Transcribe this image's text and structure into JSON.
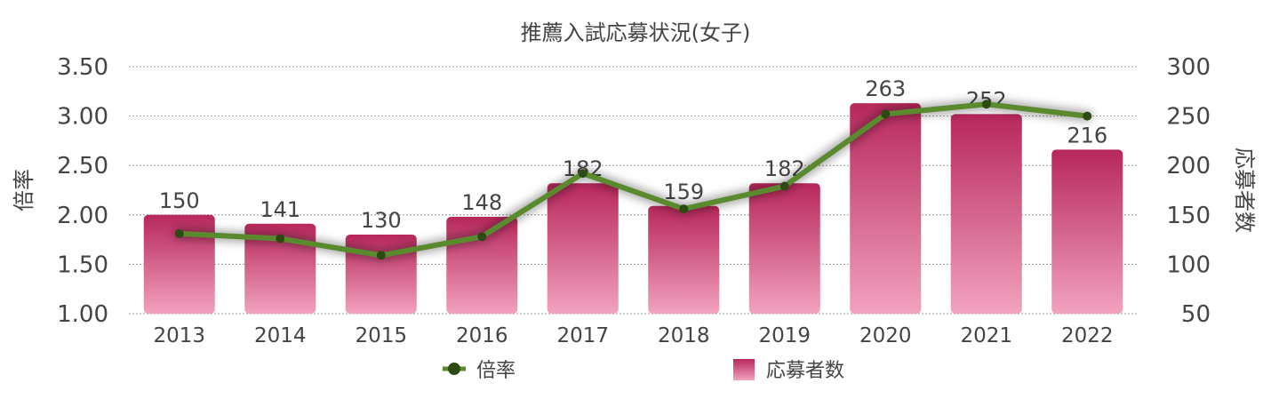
{
  "chart_data": {
    "type": "bar",
    "title": "推薦入試応募状況(女子)",
    "categories": [
      "2013",
      "2014",
      "2015",
      "2016",
      "2017",
      "2018",
      "2019",
      "2020",
      "2021",
      "2022"
    ],
    "series": [
      {
        "name": "応募者数",
        "kind": "bar",
        "axis": "right",
        "values": [
          150,
          141,
          130,
          148,
          182,
          159,
          182,
          263,
          252,
          216
        ],
        "color_top": "#b7275b",
        "color_bottom": "#f2a2bf"
      },
      {
        "name": "倍率",
        "kind": "line",
        "axis": "left",
        "values": [
          1.81,
          1.76,
          1.59,
          1.78,
          2.42,
          2.06,
          2.29,
          3.02,
          3.12,
          3.0
        ],
        "line_color": "#5a8a2e",
        "marker_color": "#2e4a14"
      }
    ],
    "y_left": {
      "label": "倍率",
      "range": [
        1.0,
        3.5
      ],
      "ticks": [
        "1.00",
        "1.50",
        "2.00",
        "2.50",
        "3.00",
        "3.50"
      ]
    },
    "y_right": {
      "label": "応募者数",
      "range": [
        50,
        300
      ],
      "ticks": [
        "50",
        "100",
        "150",
        "200",
        "250",
        "300"
      ]
    },
    "grid": true,
    "legend_placement": "bottom-center",
    "legend": [
      {
        "name": "倍率",
        "kind": "line"
      },
      {
        "name": "応募者数",
        "kind": "bar"
      }
    ]
  }
}
